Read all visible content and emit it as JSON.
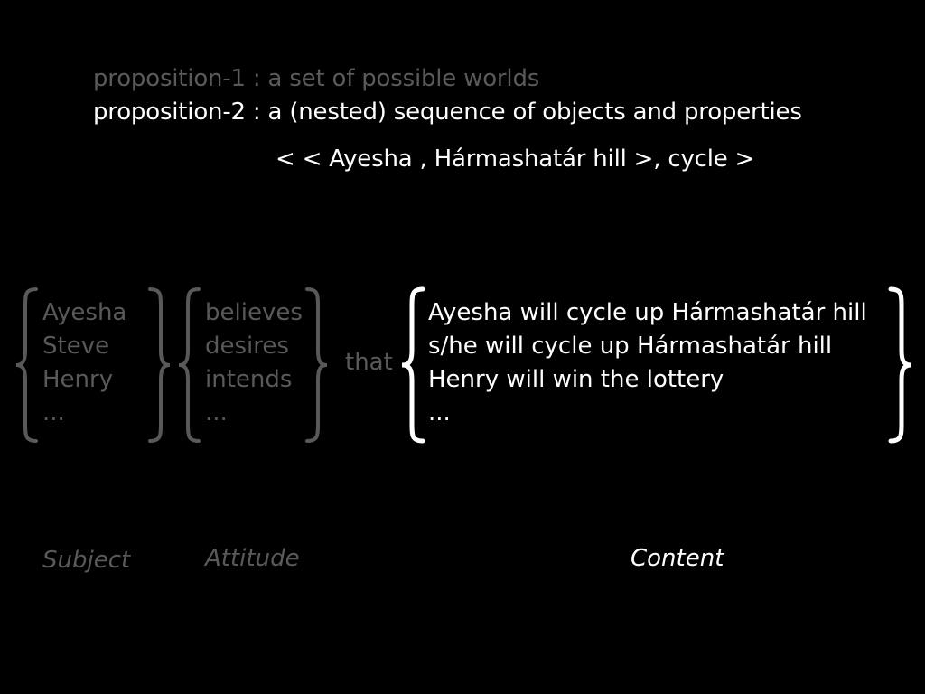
{
  "propositions": {
    "prop1": "proposition-1 : a set of possible worlds",
    "prop2": "proposition-2 : a (nested) sequence of objects and properties",
    "tuple": "< < Ayesha , Hármashatár hill >, cycle >"
  },
  "subjects": [
    "Ayesha",
    "Steve",
    "Henry",
    "..."
  ],
  "attitudes": [
    "believes",
    "desires",
    "intends",
    "..."
  ],
  "connective": "that",
  "contents": [
    "Ayesha will cycle up Hármashatár hill",
    "s/he will cycle up Hármashatár hill",
    "Henry will win the lottery",
    "..."
  ],
  "labels": {
    "subject": "Subject",
    "attitude": "Attitude",
    "content": "Content"
  },
  "colors": {
    "background": "#000000",
    "dim": "#595959",
    "highlight": "#ffffff"
  }
}
